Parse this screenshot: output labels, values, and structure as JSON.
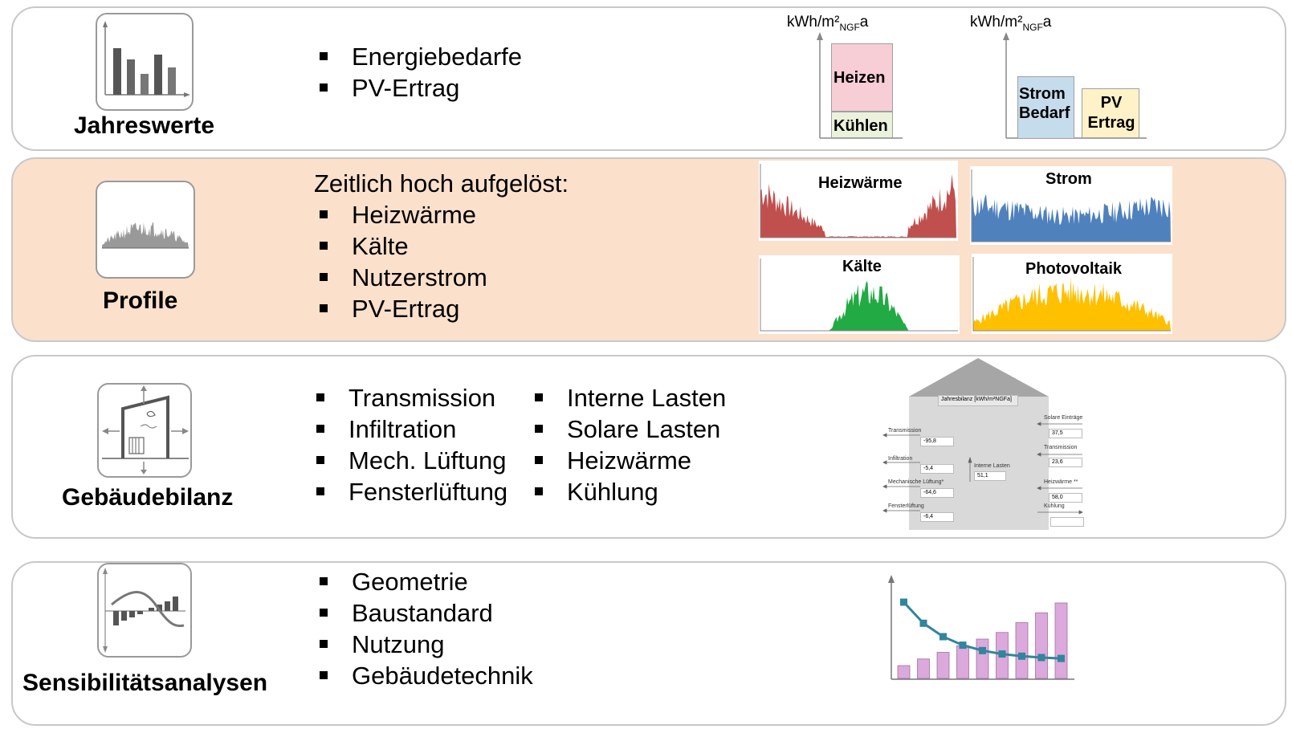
{
  "rows": {
    "jahreswerte": {
      "title": "Jahreswerte",
      "bullets": [
        "Energiebedarfe",
        "PV-Ertrag"
      ],
      "unit_left": {
        "main": "kWh/m²",
        "sub": "NGF",
        "suffix": "a"
      },
      "unit_right": {
        "main": "kWh/m²",
        "sub": "NGF",
        "suffix": "a"
      },
      "blocks": {
        "heizen": "Heizen",
        "kuehlen": "Kühlen",
        "strom_line1": "Strom",
        "strom_line2": "Bedarf",
        "pv_line1": "PV",
        "pv_line2": "Ertrag"
      },
      "colors": {
        "heizen": "#f7cdd6",
        "kuehlen": "#eaf2dc",
        "strom": "#c5dcec",
        "pv": "#fff2c8"
      }
    },
    "profile": {
      "title": "Profile",
      "lead": "Zeitlich hoch aufgelöst:",
      "bullets": [
        "Heizwärme",
        "Kälte",
        "Nutzerstrom",
        "PV-Ertrag"
      ],
      "charts": [
        {
          "title": "Heizwärme",
          "color": "#c0504d"
        },
        {
          "title": "Strom",
          "color": "#4f81bd"
        },
        {
          "title": "Kälte",
          "color": "#22aa44"
        },
        {
          "title": "Photovoltaik",
          "color": "#ffc000"
        }
      ]
    },
    "gebaeudebilanz": {
      "title": "Gebäudebilanz",
      "bullets_left": [
        "Transmission",
        "Infiltration",
        "Mech. Lüftung",
        "Fensterlüftung"
      ],
      "bullets_right": [
        "Interne Lasten",
        "Solare Lasten",
        "Heizwärme",
        "Kühlung"
      ],
      "house": {
        "header": "Jahresbilanz [kWh/m²NGFa]",
        "left": [
          {
            "label": "Transmission",
            "value": "-95,8"
          },
          {
            "label": "Infiltration",
            "value": "-5,4"
          },
          {
            "label": "Mechanische Lüftung*",
            "value": "-64,6"
          },
          {
            "label": "Fensterlüftung",
            "value": "-6,4"
          }
        ],
        "center": {
          "label": "Interne Lasten",
          "value": "51,1"
        },
        "right": [
          {
            "label": "Solare Einträge",
            "value": "37,5"
          },
          {
            "label": "Transmission",
            "value": "23,6"
          },
          {
            "label": "Heizwärme **",
            "value": "58,0"
          },
          {
            "label": "Kühlung",
            "value": ""
          }
        ],
        "colors": {
          "body": "#d9d9d9",
          "roof": "#a6a6a6"
        }
      }
    },
    "sensibilitaet": {
      "title": "Sensibilitätsanalysen",
      "bullets": [
        "Geometrie",
        "Baustandard",
        "Nutzung",
        "Gebäudetechnik"
      ],
      "colors": {
        "bar": "#dca9dc",
        "line": "#31859c"
      }
    }
  }
}
